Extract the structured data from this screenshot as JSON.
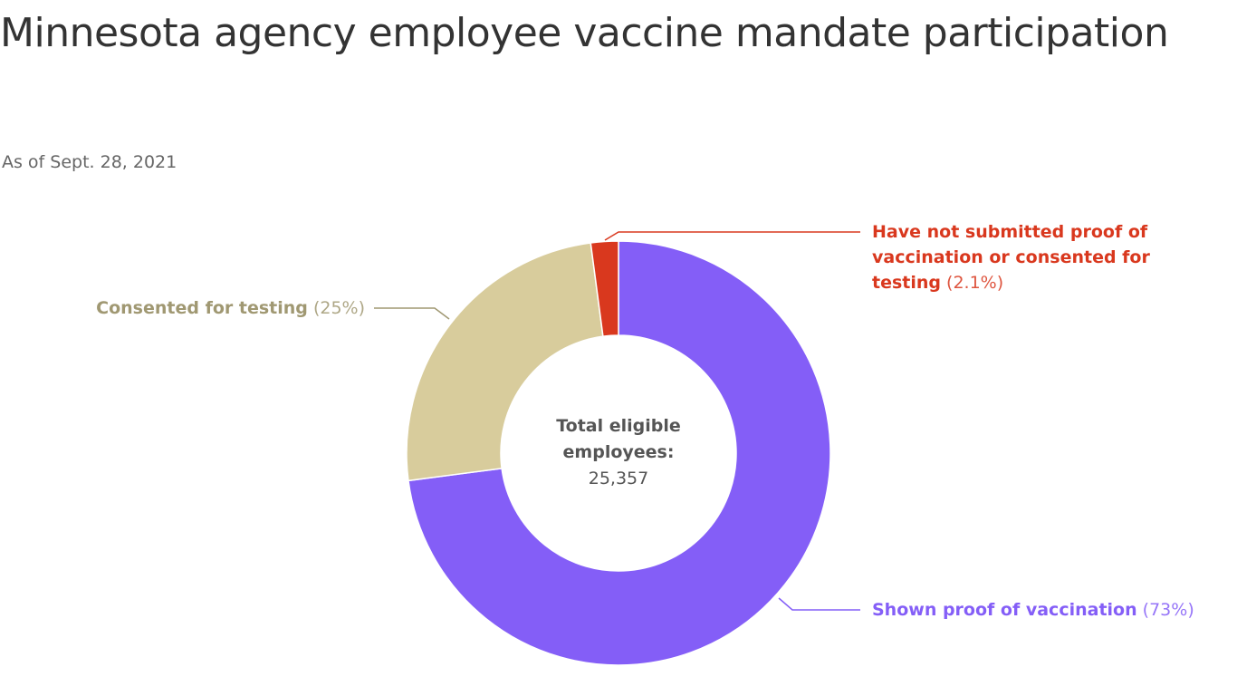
{
  "chart_data": {
    "type": "donut",
    "title": "Minnesota agency employee vaccine mandate participation",
    "subtitle": "As of Sept. 28, 2021",
    "center_label": "Total eligible employees:",
    "center_value": "25,357",
    "categories": [
      "Shown proof of vaccination",
      "Consented for testing",
      "Have not submitted proof of vaccination or consented for testing"
    ],
    "values": [
      73,
      25,
      2.1
    ],
    "value_labels": [
      "(73%)",
      "(25%)",
      "(2.1%)"
    ],
    "colors": [
      "#845ef7",
      "#d8cc9c",
      "#d9381e"
    ]
  }
}
